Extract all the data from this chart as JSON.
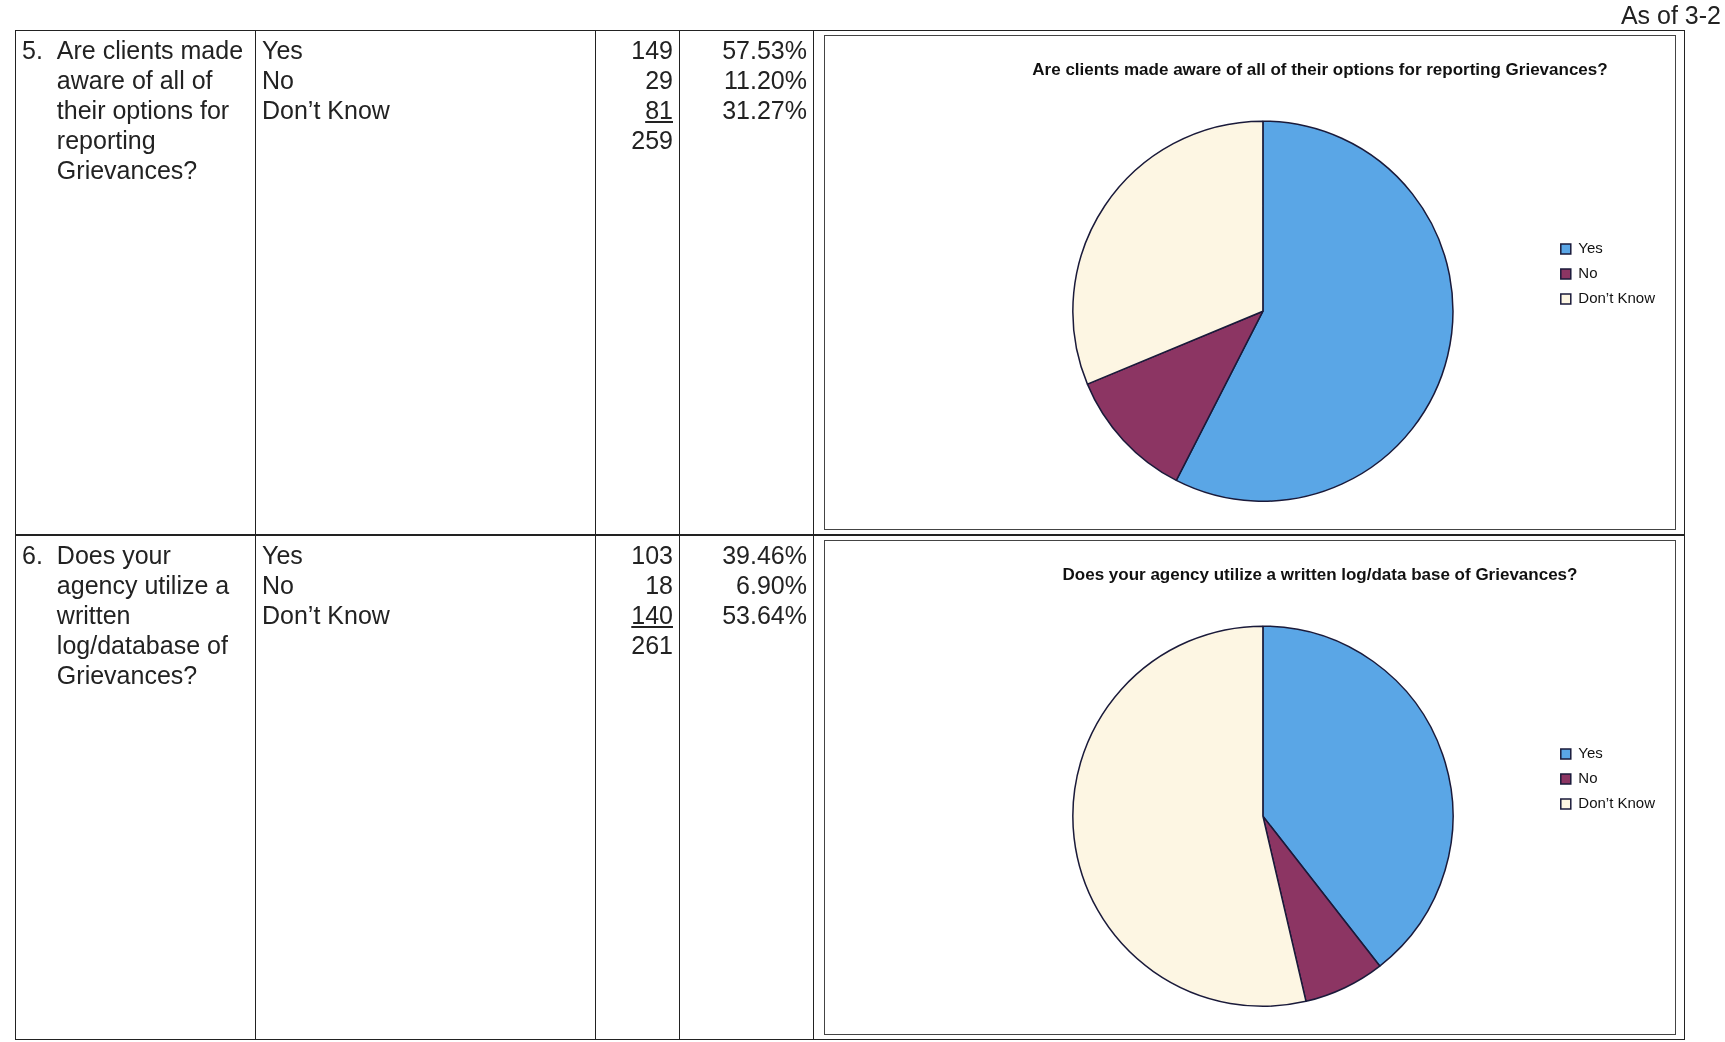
{
  "chart_data": [
    {
      "type": "pie",
      "title": "Are clients made aware of all of their options for reporting Grievances?",
      "categories": [
        "Yes",
        "No",
        "Don’t Know"
      ],
      "values": [
        57.53,
        11.2,
        31.27
      ],
      "colors": [
        "#5aa6e6",
        "#8c3563",
        "#fdf6e3"
      ],
      "legend": "right",
      "annotations": [
        "5.",
        "Are clients made aware of all of their options for reporting Grievances?",
        "149",
        "29",
        "81",
        "259",
        "57.53%",
        "11.20%",
        "31.27%",
        "As of 3-2"
      ]
    },
    {
      "type": "pie",
      "title": "Does your agency utilize a written log/data base of Grievances?",
      "categories": [
        "Yes",
        "No",
        "Don’t Know"
      ],
      "values": [
        39.46,
        6.9,
        53.64
      ],
      "colors": [
        "#5aa6e6",
        "#8c3563",
        "#fdf6e3"
      ],
      "legend": "right",
      "annotations": [
        "6.",
        "Does your agency utilize a written log/database of Grievances?",
        "103",
        "18",
        "140",
        "261",
        "39.46%",
        "6.90%",
        "53.64%"
      ]
    }
  ]
}
